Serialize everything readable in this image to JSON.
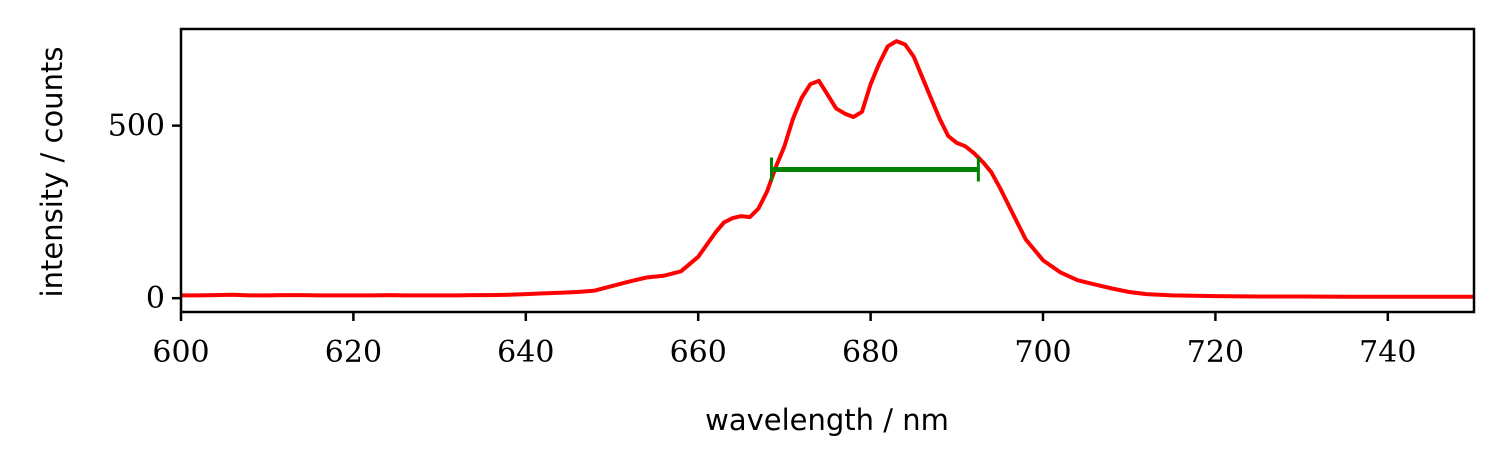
{
  "chart_data": {
    "type": "line",
    "title": "",
    "xlabel": "wavelength / nm",
    "ylabel": "intensity / counts",
    "xlim": [
      600,
      750
    ],
    "ylim": [
      -40,
      780
    ],
    "xticks": [
      600,
      620,
      640,
      660,
      680,
      700,
      720,
      740
    ],
    "yticks": [
      0,
      500
    ],
    "grid": false,
    "legend": "none",
    "colors": {
      "spectrum": "#ff0000",
      "fwhm": "#008000"
    },
    "series": [
      {
        "x": [
          600,
          602,
          604,
          606,
          608,
          610,
          612,
          614,
          616,
          618,
          620,
          622,
          624,
          626,
          628,
          630,
          632,
          634,
          636,
          638,
          640,
          642,
          644,
          646,
          648,
          650,
          652,
          654,
          656,
          658,
          660,
          662,
          663,
          664,
          665,
          666,
          667,
          668,
          669,
          670,
          671,
          672,
          673,
          674,
          675,
          676,
          677,
          678,
          679,
          680,
          681,
          682,
          683,
          684,
          685,
          686,
          687,
          688,
          689,
          690,
          691,
          692,
          693,
          694,
          695,
          696,
          697,
          698,
          700,
          702,
          704,
          706,
          708,
          710,
          712,
          715,
          720,
          725,
          730,
          735,
          740,
          745,
          750
        ],
        "values": [
          8,
          8,
          9,
          10,
          8,
          8,
          9,
          9,
          8,
          8,
          8,
          8,
          9,
          8,
          8,
          8,
          8,
          9,
          9,
          10,
          12,
          14,
          16,
          18,
          22,
          35,
          48,
          60,
          65,
          78,
          120,
          190,
          220,
          232,
          238,
          235,
          260,
          310,
          380,
          440,
          520,
          580,
          620,
          630,
          590,
          550,
          535,
          525,
          540,
          620,
          680,
          730,
          745,
          735,
          700,
          640,
          580,
          520,
          470,
          450,
          440,
          420,
          395,
          365,
          320,
          270,
          220,
          170,
          110,
          75,
          52,
          40,
          28,
          18,
          12,
          8,
          6,
          5,
          5,
          4,
          4,
          4,
          4
        ]
      }
    ],
    "fwhm": {
      "x_start": 668.5,
      "x_end": 692.5,
      "y": 373
    }
  }
}
